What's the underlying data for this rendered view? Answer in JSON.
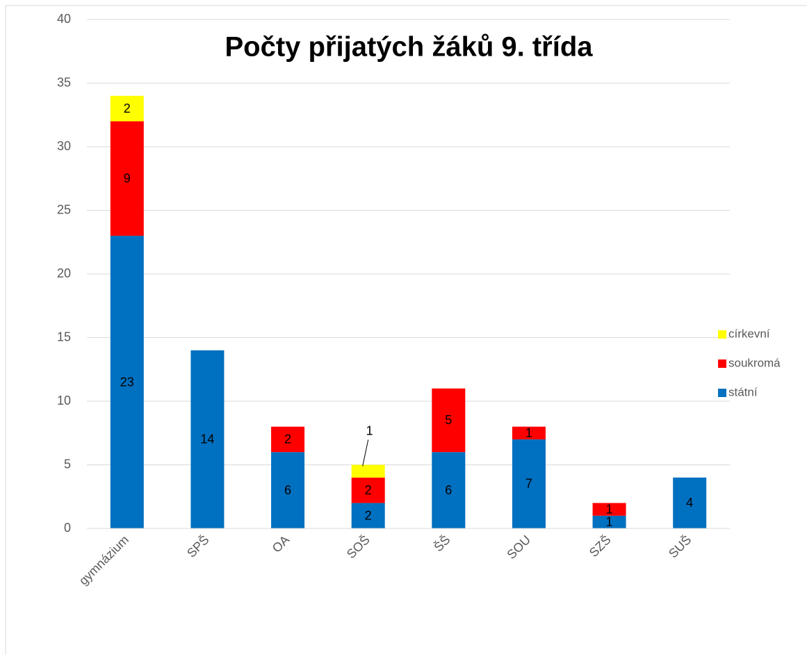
{
  "chart_data": {
    "type": "stacked_bar",
    "title": "Počty přijatých žáků 9. třída",
    "categories": [
      "gymnázium",
      "SPŠ",
      "OA",
      "SOŠ",
      "ŠŠ",
      "SOU",
      "SZŠ",
      "SUŠ"
    ],
    "series": [
      {
        "name": "státní",
        "color": "#0070c0",
        "values": [
          23,
          14,
          6,
          2,
          6,
          7,
          1,
          4
        ]
      },
      {
        "name": "soukromá",
        "color": "#ff0000",
        "values": [
          9,
          null,
          2,
          2,
          5,
          1,
          1,
          null
        ]
      },
      {
        "name": "církevní",
        "color": "#ffff00",
        "values": [
          2,
          null,
          null,
          1,
          null,
          null,
          null,
          null
        ]
      }
    ],
    "ylim": [
      0,
      40
    ],
    "yticks": [
      0,
      5,
      10,
      15,
      20,
      25,
      30,
      35,
      40
    ],
    "grid": true,
    "legend": "right"
  }
}
